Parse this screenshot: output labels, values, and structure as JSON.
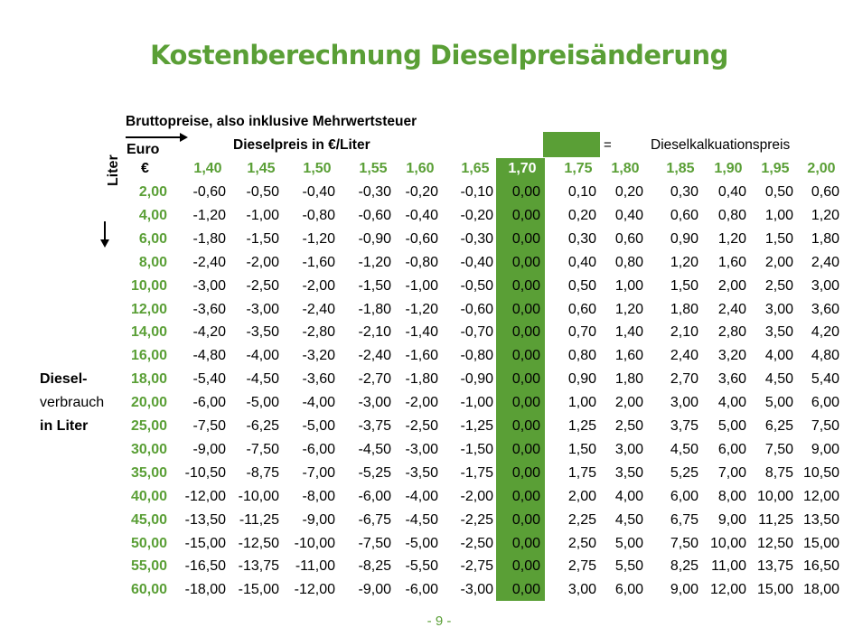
{
  "title": "Kostenberechnung Dieselpreisänderung",
  "subtitle": "Bruttopreise, also inklusive Mehrwertsteuer",
  "euro_label": "Euro",
  "euro_symbol": "€",
  "price_label": "Dieselpreis in €/Liter",
  "legend_equals": "=",
  "legend_text": "Dieselkalkuationspreis",
  "liter_label": "Liter",
  "side_label": {
    "line1": "Diesel-",
    "line2": "verbrauch",
    "line3": "in Liter"
  },
  "accent_color": "#5a9f36",
  "selected_price": "1,70",
  "prices": [
    "1,40",
    "1,45",
    "1,50",
    "1,55",
    "1,60",
    "1,65",
    "1,70",
    "1,75",
    "1,80",
    "1,85",
    "1,90",
    "1,95",
    "2,00"
  ],
  "rows": [
    {
      "liter": "2,00",
      "values": [
        "-0,60",
        "-0,50",
        "-0,40",
        "-0,30",
        "-0,20",
        "-0,10",
        "0,00",
        "0,10",
        "0,20",
        "0,30",
        "0,40",
        "0,50",
        "0,60"
      ]
    },
    {
      "liter": "4,00",
      "values": [
        "-1,20",
        "-1,00",
        "-0,80",
        "-0,60",
        "-0,40",
        "-0,20",
        "0,00",
        "0,20",
        "0,40",
        "0,60",
        "0,80",
        "1,00",
        "1,20"
      ]
    },
    {
      "liter": "6,00",
      "values": [
        "-1,80",
        "-1,50",
        "-1,20",
        "-0,90",
        "-0,60",
        "-0,30",
        "0,00",
        "0,30",
        "0,60",
        "0,90",
        "1,20",
        "1,50",
        "1,80"
      ]
    },
    {
      "liter": "8,00",
      "values": [
        "-2,40",
        "-2,00",
        "-1,60",
        "-1,20",
        "-0,80",
        "-0,40",
        "0,00",
        "0,40",
        "0,80",
        "1,20",
        "1,60",
        "2,00",
        "2,40"
      ]
    },
    {
      "liter": "10,00",
      "values": [
        "-3,00",
        "-2,50",
        "-2,00",
        "-1,50",
        "-1,00",
        "-0,50",
        "0,00",
        "0,50",
        "1,00",
        "1,50",
        "2,00",
        "2,50",
        "3,00"
      ]
    },
    {
      "liter": "12,00",
      "values": [
        "-3,60",
        "-3,00",
        "-2,40",
        "-1,80",
        "-1,20",
        "-0,60",
        "0,00",
        "0,60",
        "1,20",
        "1,80",
        "2,40",
        "3,00",
        "3,60"
      ]
    },
    {
      "liter": "14,00",
      "values": [
        "-4,20",
        "-3,50",
        "-2,80",
        "-2,10",
        "-1,40",
        "-0,70",
        "0,00",
        "0,70",
        "1,40",
        "2,10",
        "2,80",
        "3,50",
        "4,20"
      ]
    },
    {
      "liter": "16,00",
      "values": [
        "-4,80",
        "-4,00",
        "-3,20",
        "-2,40",
        "-1,60",
        "-0,80",
        "0,00",
        "0,80",
        "1,60",
        "2,40",
        "3,20",
        "4,00",
        "4,80"
      ]
    },
    {
      "liter": "18,00",
      "values": [
        "-5,40",
        "-4,50",
        "-3,60",
        "-2,70",
        "-1,80",
        "-0,90",
        "0,00",
        "0,90",
        "1,80",
        "2,70",
        "3,60",
        "4,50",
        "5,40"
      ]
    },
    {
      "liter": "20,00",
      "values": [
        "-6,00",
        "-5,00",
        "-4,00",
        "-3,00",
        "-2,00",
        "-1,00",
        "0,00",
        "1,00",
        "2,00",
        "3,00",
        "4,00",
        "5,00",
        "6,00"
      ]
    },
    {
      "liter": "25,00",
      "values": [
        "-7,50",
        "-6,25",
        "-5,00",
        "-3,75",
        "-2,50",
        "-1,25",
        "0,00",
        "1,25",
        "2,50",
        "3,75",
        "5,00",
        "6,25",
        "7,50"
      ]
    },
    {
      "liter": "30,00",
      "values": [
        "-9,00",
        "-7,50",
        "-6,00",
        "-4,50",
        "-3,00",
        "-1,50",
        "0,00",
        "1,50",
        "3,00",
        "4,50",
        "6,00",
        "7,50",
        "9,00"
      ]
    },
    {
      "liter": "35,00",
      "values": [
        "-10,50",
        "-8,75",
        "-7,00",
        "-5,25",
        "-3,50",
        "-1,75",
        "0,00",
        "1,75",
        "3,50",
        "5,25",
        "7,00",
        "8,75",
        "10,50"
      ]
    },
    {
      "liter": "40,00",
      "values": [
        "-12,00",
        "-10,00",
        "-8,00",
        "-6,00",
        "-4,00",
        "-2,00",
        "0,00",
        "2,00",
        "4,00",
        "6,00",
        "8,00",
        "10,00",
        "12,00"
      ]
    },
    {
      "liter": "45,00",
      "values": [
        "-13,50",
        "-11,25",
        "-9,00",
        "-6,75",
        "-4,50",
        "-2,25",
        "0,00",
        "2,25",
        "4,50",
        "6,75",
        "9,00",
        "11,25",
        "13,50"
      ]
    },
    {
      "liter": "50,00",
      "values": [
        "-15,00",
        "-12,50",
        "-10,00",
        "-7,50",
        "-5,00",
        "-2,50",
        "0,00",
        "2,50",
        "5,00",
        "7,50",
        "10,00",
        "12,50",
        "15,00"
      ]
    },
    {
      "liter": "55,00",
      "values": [
        "-16,50",
        "-13,75",
        "-11,00",
        "-8,25",
        "-5,50",
        "-2,75",
        "0,00",
        "2,75",
        "5,50",
        "8,25",
        "11,00",
        "13,75",
        "16,50"
      ]
    },
    {
      "liter": "60,00",
      "values": [
        "-18,00",
        "-15,00",
        "-12,00",
        "-9,00",
        "-6,00",
        "-3,00",
        "0,00",
        "3,00",
        "6,00",
        "9,00",
        "12,00",
        "15,00",
        "18,00"
      ]
    }
  ],
  "footer": "- 9 -"
}
